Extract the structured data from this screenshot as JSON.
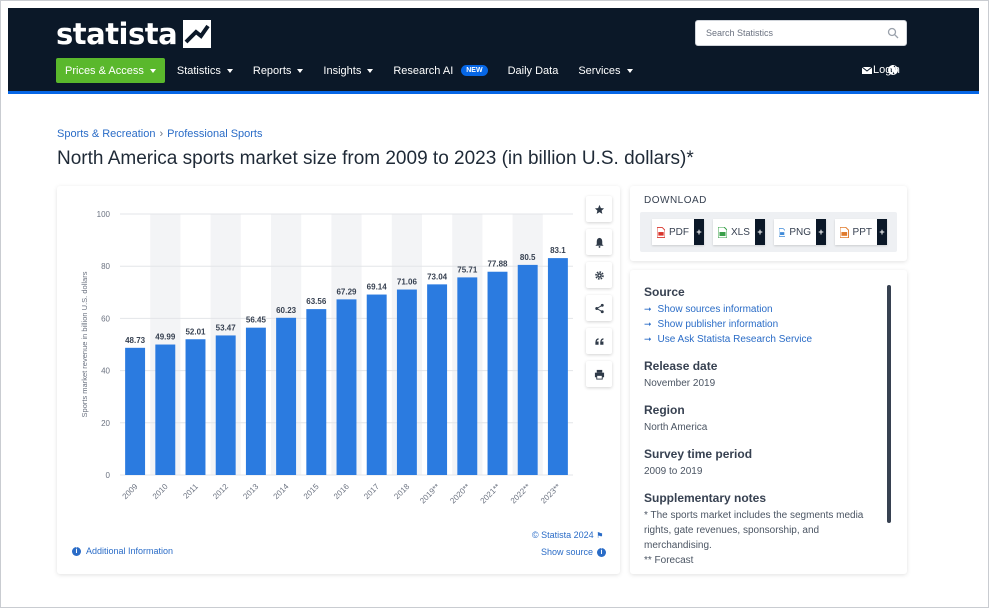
{
  "header": {
    "logo_text": "statista",
    "search_placeholder": "Search Statistics",
    "nav": [
      {
        "label": "Prices & Access",
        "caret": true
      },
      {
        "label": "Statistics",
        "caret": true
      },
      {
        "label": "Reports",
        "caret": true
      },
      {
        "label": "Insights",
        "caret": true
      },
      {
        "label": "Research AI",
        "caret": false,
        "badge": "NEW"
      },
      {
        "label": "Daily Data",
        "caret": false
      },
      {
        "label": "Services",
        "caret": true
      }
    ],
    "login_label": "Login",
    "colors": {
      "bg": "#0b1828",
      "active": "#5ab82c",
      "accent": "#0666e5"
    }
  },
  "breadcrumb": {
    "items": [
      "Sports & Recreation",
      "Professional Sports"
    ],
    "separator": "›"
  },
  "page_title": "North America sports market size from 2009 to 2023 (in billion U.S. dollars)*",
  "chart": {
    "toolbar_icons": [
      "star-icon",
      "bell-icon",
      "gear-icon",
      "share-icon",
      "quote-icon",
      "print-icon"
    ],
    "copyright": "© Statista 2024",
    "show_source": "Show source",
    "additional_info": "Additional Information"
  },
  "chart_data": {
    "type": "bar",
    "categories": [
      "2009",
      "2010",
      "2011",
      "2012",
      "2013",
      "2014",
      "2015",
      "2016",
      "2017",
      "2018",
      "2019**",
      "2020**",
      "2021**",
      "2022**",
      "2023**"
    ],
    "values": [
      48.73,
      49.99,
      52.01,
      53.47,
      56.45,
      60.23,
      63.56,
      67.29,
      69.14,
      71.06,
      73.04,
      75.71,
      77.88,
      80.5,
      83.1
    ],
    "value_labels": [
      "48.73",
      "49.99",
      "52.01",
      "53.47",
      "56.45",
      "60.23",
      "63.56",
      "67.29",
      "69.14",
      "71.06",
      "73.04",
      "75.71",
      "77.88",
      "80.5",
      "83.1"
    ],
    "ylabel": "Sports market revenue in billion U.S. dollars",
    "yticks": [
      0,
      20,
      40,
      60,
      80,
      100
    ],
    "ylim": [
      0,
      100
    ],
    "bar_color": "#2b7be0",
    "grid": true
  },
  "download": {
    "title": "DOWNLOAD",
    "formats": [
      {
        "label": "PDF",
        "color": "#d9342b"
      },
      {
        "label": "XLS",
        "color": "#3aa04a"
      },
      {
        "label": "PNG",
        "color": "#3f8ad8"
      },
      {
        "label": "PPT",
        "color": "#e07a2b"
      }
    ],
    "plus": "+"
  },
  "info": {
    "source_title": "Source",
    "source_links": [
      "Show sources information",
      "Show publisher information",
      "Use Ask Statista Research Service"
    ],
    "release_title": "Release date",
    "release_value": "November 2019",
    "region_title": "Region",
    "region_value": "North America",
    "survey_title": "Survey time period",
    "survey_value": "2009 to 2019",
    "notes_title": "Supplementary notes",
    "notes_value": "* The sports market includes the segments media rights, gate revenues, sponsorship, and merchandising.",
    "notes_forecast": "** Forecast"
  }
}
